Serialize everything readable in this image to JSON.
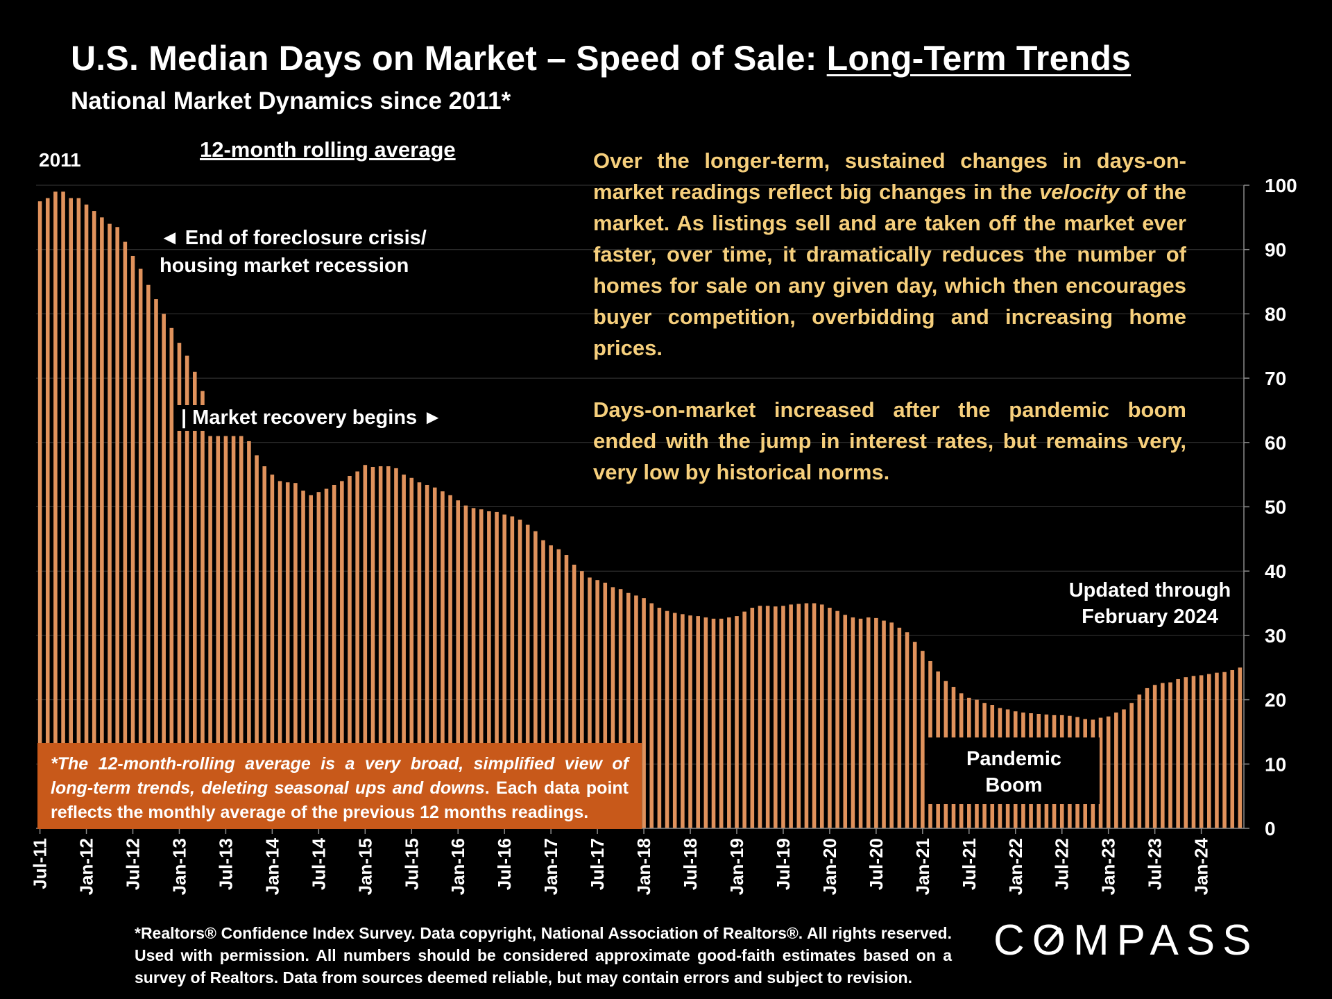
{
  "title": {
    "main": "U.S. Median Days on Market – Speed of Sale: ",
    "underlined": "Long-Term Trends"
  },
  "subtitle": "National Market Dynamics since 2011*",
  "notes": {
    "year": "2011",
    "rolling": "12-month rolling average",
    "foreclosure_line1": "◄ End of foreclosure crisis/",
    "foreclosure_line2": "housing market recession",
    "recovery": "| Market recovery begins ►",
    "updated_line1": "Updated through",
    "updated_line2": "February 2024",
    "pandemic_line1": "Pandemic",
    "pandemic_line2": "Boom"
  },
  "explain": {
    "p1_before": "Over the longer-term, sustained changes in days-on-market readings reflect big changes in the ",
    "p1_em": "velocity",
    "p1_after": " of the market. As listings sell and are taken off the market ever faster, over time, it dramatically reduces the number of homes for sale on any given day, which then encourages buyer competition, overbidding and increasing home prices.",
    "p2": "Days-on-market increased after the pandemic boom ended with the jump in interest rates, but remains very, very low by historical norms."
  },
  "footnote_box": {
    "italic": "*The 12-month-rolling average is a very broad, simplified view of long-term trends, deleting seasonal ups and downs",
    "rest": ". Each data point reflects the monthly average of the previous 12 months readings."
  },
  "source": "*Realtors® Confidence Index Survey. Data copyright, National Association of Realtors®. All rights reserved. Used with permission. All numbers should be considered approximate good-faith estimates based on a survey of Realtors. Data from sources deemed reliable, but may contain errors and subject to revision.",
  "logo": "COMPASS",
  "colors": {
    "bar": "#e0925c",
    "explain_text": "#f6cf7c",
    "footnote_bg": "#c8591a"
  },
  "chart_data": {
    "type": "bar",
    "y_axis_position": "right",
    "ylim": [
      0,
      100
    ],
    "yticks": [
      0,
      10,
      20,
      30,
      40,
      50,
      60,
      70,
      80,
      90,
      100
    ],
    "grid": true,
    "xtick_labels": [
      "Jul-11",
      "Jan-12",
      "Jul-12",
      "Jan-13",
      "Jul-13",
      "Jan-14",
      "Jul-14",
      "Jan-15",
      "Jul-15",
      "Jan-16",
      "Jul-16",
      "Jan-17",
      "Jul-17",
      "Jan-18",
      "Jul-18",
      "Jan-19",
      "Jul-19",
      "Jan-20",
      "Jul-20",
      "Jan-21",
      "Jul-21",
      "Jan-22",
      "Jul-22",
      "Jan-23",
      "Jul-23",
      "Jan-24"
    ],
    "x_start": "Jul-11",
    "x_end": "Feb-24",
    "values": [
      97.5,
      98,
      99,
      99,
      98,
      98,
      97,
      96,
      95,
      94,
      93.5,
      91.2,
      89,
      87,
      84.5,
      82.3,
      80,
      77.8,
      75.5,
      73.5,
      71,
      68,
      61,
      61,
      61,
      61,
      61,
      60.2,
      58,
      56.3,
      55,
      54,
      53.8,
      53.7,
      52.5,
      51.8,
      52.3,
      52.8,
      53.4,
      54,
      54.8,
      55.5,
      56.5,
      56.2,
      56.3,
      56.3,
      56,
      55,
      54.5,
      53.8,
      53.4,
      53,
      52.4,
      51.8,
      51,
      50.2,
      49.8,
      49.6,
      49.3,
      49.2,
      48.8,
      48.5,
      48,
      47.2,
      46.2,
      44.8,
      44,
      43.4,
      42.5,
      41,
      40,
      39,
      38.6,
      38.2,
      37.5,
      37.2,
      36.6,
      36.2,
      35.8,
      35,
      34.3,
      33.8,
      33.5,
      33.3,
      33.1,
      33,
      32.8,
      32.6,
      32.6,
      32.8,
      33,
      33.7,
      34.3,
      34.6,
      34.6,
      34.5,
      34.6,
      34.8,
      34.9,
      35,
      35,
      34.8,
      34.3,
      33.8,
      33.2,
      32.8,
      32.6,
      32.8,
      32.7,
      32.3,
      32,
      31.2,
      30.5,
      29,
      27.6,
      26,
      24.4,
      22.9,
      22,
      21,
      20.3,
      20,
      19.5,
      19.2,
      18.7,
      18.5,
      18.2,
      18,
      17.9,
      17.8,
      17.7,
      17.6,
      17.6,
      17.5,
      17.3,
      17,
      16.9,
      17.2,
      17.4,
      18,
      18.5,
      19.5,
      20.8,
      21.8,
      22.3,
      22.6,
      22.7,
      23.2,
      23.5,
      23.7,
      23.8,
      24,
      24.2,
      24.3,
      24.6,
      25
    ]
  }
}
